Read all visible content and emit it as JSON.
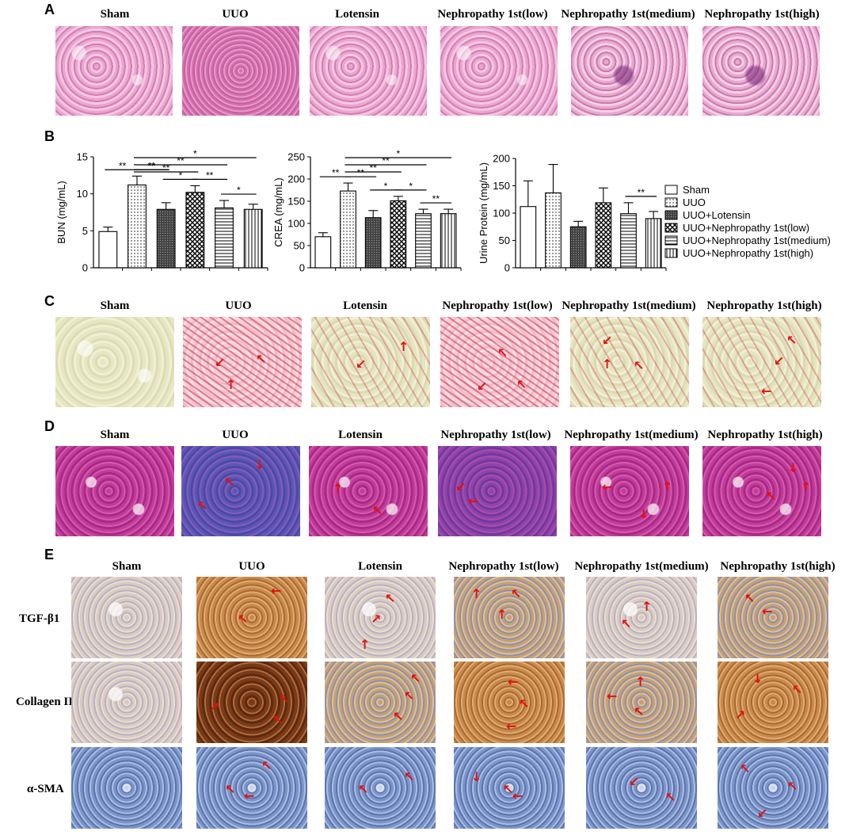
{
  "panels": {
    "A": {
      "label": "A",
      "titles": [
        "Sham",
        "UUO",
        "Lotensin",
        "Nephropathy 1st(low)",
        "Nephropathy 1st(medium)",
        "Nephropathy 1st(high)"
      ]
    },
    "B": {
      "label": "B"
    },
    "C": {
      "label": "C",
      "titles": [
        "Sham",
        "UUO",
        "Lotensin",
        "Nephropathy 1st(low)",
        "Nephropathy 1st(medium)",
        "Nephropathy 1st(high)"
      ]
    },
    "D": {
      "label": "D",
      "titles": [
        "Sham",
        "UUO",
        "Lotensin",
        "Nephropathy 1st(low)",
        "Nephropathy 1st(medium)",
        "Nephropathy 1st(high)"
      ]
    },
    "E": {
      "label": "E",
      "titles": [
        "Sham",
        "UUO",
        "Lotensin",
        "Nephropathy 1st(low)",
        "Nephropathy 1st(medium)",
        "Nephropathy 1st(high)"
      ],
      "rows": [
        "TGF-β1",
        "Collagen III",
        "α-SMA"
      ]
    }
  },
  "chart_data": [
    {
      "type": "bar",
      "ylabel": "BUN (mg/mL)",
      "ylim": [
        0,
        15
      ],
      "yticks": [
        "0",
        "5",
        "10",
        "15"
      ],
      "values": [
        4.9,
        11.2,
        7.9,
        10.2,
        8.1,
        7.9
      ],
      "errors": [
        0.6,
        1.2,
        0.9,
        0.9,
        1.0,
        0.7
      ],
      "sig": [
        {
          "from": 0,
          "to": 1,
          "label": "**"
        },
        {
          "from": 1,
          "to": 2,
          "label": "**"
        },
        {
          "from": 2,
          "to": 3,
          "label": "*"
        },
        {
          "from": 3,
          "to": 4,
          "label": "**"
        },
        {
          "from": 4,
          "to": 5,
          "label": "*"
        },
        {
          "from": 1,
          "to": 5,
          "label": "*"
        },
        {
          "from": 1,
          "to": 4,
          "label": "**"
        },
        {
          "from": 1,
          "to": 3,
          "label": "**"
        },
        {
          "from": 1,
          "to": 2,
          "label": "**"
        }
      ]
    },
    {
      "type": "bar",
      "ylabel": "CREA (mg/mL)",
      "ylim": [
        0,
        250
      ],
      "yticks": [
        "0",
        "50",
        "100",
        "150",
        "200",
        "250"
      ],
      "values": [
        70,
        173,
        113,
        151,
        122,
        122
      ],
      "errors": [
        9,
        18,
        16,
        10,
        10,
        10
      ],
      "sig": [
        {
          "from": 0,
          "to": 1,
          "label": "**"
        },
        {
          "from": 1,
          "to": 2,
          "label": "**"
        },
        {
          "from": 2,
          "to": 3,
          "label": "*"
        },
        {
          "from": 3,
          "to": 4,
          "label": "*"
        },
        {
          "from": 4,
          "to": 5,
          "label": "**"
        },
        {
          "from": 1,
          "to": 5,
          "label": "*"
        },
        {
          "from": 1,
          "to": 4,
          "label": "**"
        },
        {
          "from": 1,
          "to": 3,
          "label": "**"
        }
      ]
    },
    {
      "type": "bar",
      "ylabel": "Urine Protein (mg/mL)",
      "ylim": [
        0,
        200
      ],
      "yticks": [
        "0",
        "50",
        "100",
        "150",
        "200"
      ],
      "values": [
        112,
        137,
        75,
        119,
        99,
        90
      ],
      "errors": [
        47,
        52,
        10,
        27,
        20,
        13
      ],
      "sig": [
        {
          "from": 4,
          "to": 5,
          "label": "**"
        }
      ]
    }
  ],
  "legend": {
    "entries": [
      "Sham",
      "UUO",
      "UUO+Lotensin",
      "UUO+Nephropathy 1st(low)",
      "UUO+Nephropathy 1st(medium)",
      "UUO+Nephropathy 1st(high)"
    ]
  }
}
